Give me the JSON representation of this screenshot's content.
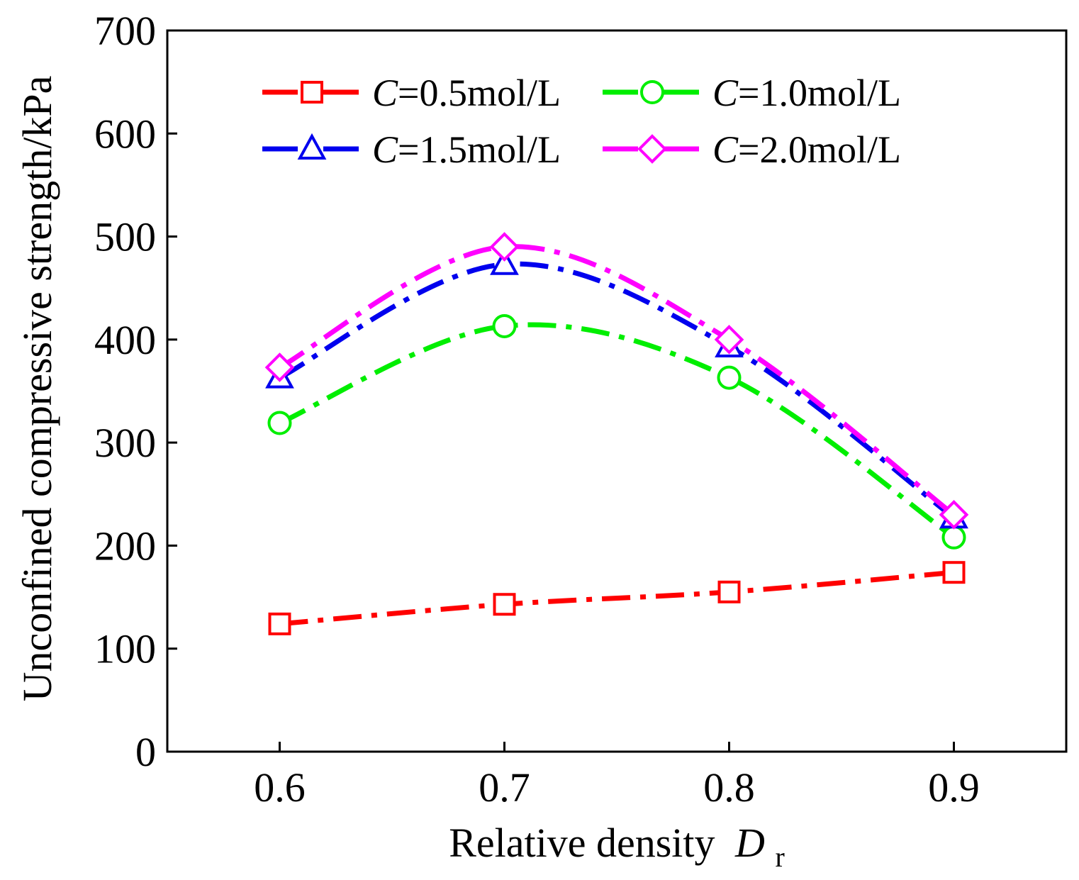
{
  "chart_data": {
    "type": "line",
    "title": "",
    "xlabel": "Relative density",
    "xlabel_symbol": "D",
    "xlabel_subscript": "r",
    "ylabel": "Unconfined compressive strength/kPa",
    "xlim": [
      0.55,
      0.95
    ],
    "ylim": [
      0,
      700
    ],
    "x_ticks": [
      "0.6",
      "0.7",
      "0.8",
      "0.9"
    ],
    "y_ticks": [
      "0",
      "100",
      "200",
      "300",
      "400",
      "500",
      "600",
      "700"
    ],
    "x": [
      0.6,
      0.7,
      0.8,
      0.9
    ],
    "grid": false,
    "legend_position": "top",
    "series": [
      {
        "name": "C=0.5mol/L",
        "symbol": "C",
        "label": "=0.5mol/L",
        "color": "#ff0000",
        "marker": "square",
        "values": [
          124,
          143,
          155,
          174
        ]
      },
      {
        "name": "C=1.0mol/L",
        "symbol": "C",
        "label": "=1.0mol/L",
        "color": "#00ee00",
        "marker": "circle",
        "values": [
          319,
          413,
          363,
          208
        ]
      },
      {
        "name": "C=1.5mol/L",
        "symbol": "C",
        "label": "=1.5mol/L",
        "color": "#0000ee",
        "marker": "triangle",
        "values": [
          363,
          473,
          393,
          227
        ]
      },
      {
        "name": "C=2.0mol/L",
        "symbol": "C",
        "label": "=2.0mol/L",
        "color": "#ff00ff",
        "marker": "diamond",
        "values": [
          373,
          490,
          400,
          230
        ]
      }
    ]
  }
}
